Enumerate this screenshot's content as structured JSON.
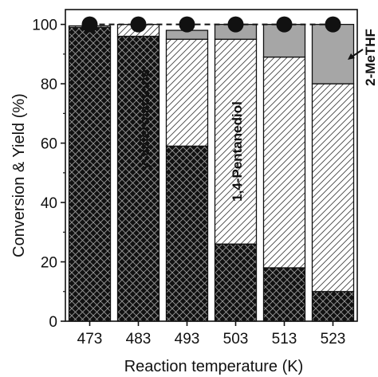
{
  "chart_data": {
    "type": "bar",
    "stacked": true,
    "categories": [
      "473",
      "483",
      "493",
      "503",
      "513",
      "523"
    ],
    "xlabel": "Reaction temperature (K)",
    "ylabel": "Conversion & Yield (%)",
    "ylim": [
      0,
      105
    ],
    "yticks": [
      "0",
      "20",
      "40",
      "60",
      "80",
      "100"
    ],
    "series": [
      {
        "name": "γ-Valerolactone",
        "pattern": "crosshatch-dark",
        "values": [
          99.0,
          96.0,
          59.0,
          26.0,
          18.0,
          10.0
        ]
      },
      {
        "name": "1,4-Pentanediol",
        "pattern": "diagonal-light",
        "values": [
          0.5,
          4.0,
          36.0,
          69.0,
          71.0,
          70.0
        ]
      },
      {
        "name": "2-MeTHF",
        "pattern": "solid-gray",
        "values": [
          0.0,
          0.0,
          3.0,
          5.0,
          11.0,
          20.0
        ]
      }
    ],
    "conversion": {
      "values": [
        100,
        100,
        100,
        100,
        100,
        100
      ],
      "marker": "filled-circle",
      "line": "dashed"
    },
    "colors": {
      "dark": "#111111",
      "gray": "#a6a6a6",
      "background": "#ffffff"
    }
  }
}
